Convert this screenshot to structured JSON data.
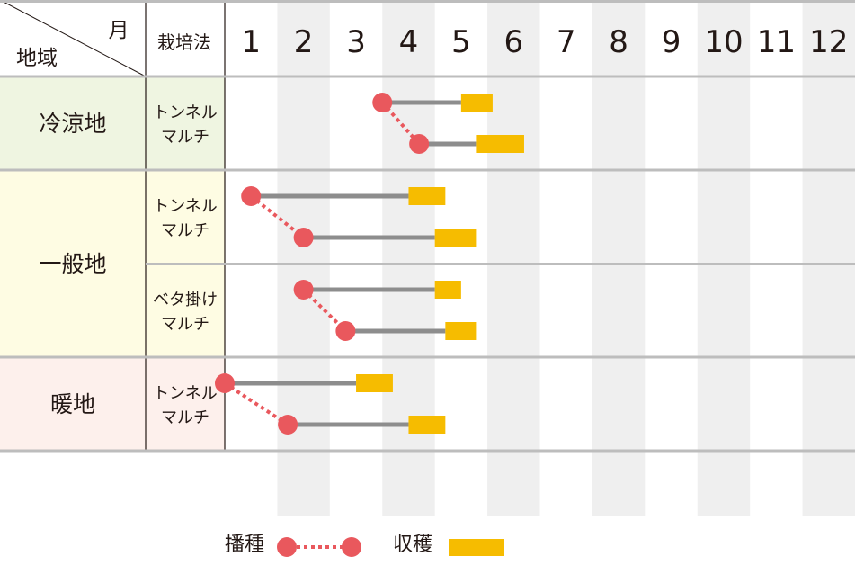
{
  "header": {
    "region_label": "地域",
    "month_label": "月",
    "method_label": "栽培法"
  },
  "chart_data": {
    "type": "gantt",
    "x_unit": "月",
    "months": [
      "1",
      "2",
      "3",
      "4",
      "5",
      "6",
      "7",
      "8",
      "9",
      "10",
      "11",
      "12"
    ],
    "regions": [
      {
        "name": "冷涼地",
        "color": "#eff5e1",
        "methods": [
          {
            "name_lines": [
              "トンネル",
              "マルチ"
            ],
            "sow_start": 4.0,
            "sow_end": 4.7,
            "early": {
              "start": 4.0,
              "harvest_start": 5.5,
              "end": 6.1
            },
            "late": {
              "start": 4.7,
              "harvest_start": 5.8,
              "end": 6.7
            }
          }
        ]
      },
      {
        "name": "一般地",
        "color": "#fefce3",
        "methods": [
          {
            "name_lines": [
              "トンネル",
              "マルチ"
            ],
            "sow_start": 1.5,
            "sow_end": 2.5,
            "early": {
              "start": 1.5,
              "harvest_start": 4.5,
              "end": 5.2
            },
            "late": {
              "start": 2.5,
              "harvest_start": 5.0,
              "end": 5.8
            }
          },
          {
            "name_lines": [
              "ベタ掛け",
              "マルチ"
            ],
            "sow_start": 2.5,
            "sow_end": 3.3,
            "early": {
              "start": 2.5,
              "harvest_start": 5.0,
              "end": 5.5
            },
            "late": {
              "start": 3.3,
              "harvest_start": 5.2,
              "end": 5.8
            }
          }
        ]
      },
      {
        "name": "暖地",
        "color": "#fdf0ec",
        "methods": [
          {
            "name_lines": [
              "トンネル",
              "マルチ"
            ],
            "sow_start": 1.0,
            "sow_end": 2.2,
            "early": {
              "start": 1.0,
              "harvest_start": 3.5,
              "end": 4.2
            },
            "late": {
              "start": 2.2,
              "harvest_start": 4.5,
              "end": 5.2
            }
          }
        ]
      }
    ],
    "legend": [
      {
        "label": "播種",
        "kind": "sowing",
        "color": "#e9585d"
      },
      {
        "label": "収穫",
        "kind": "harvest",
        "color": "#f6bc00"
      }
    ],
    "colors": {
      "growth_line": "#8d8d8d",
      "sowing": "#e9585d",
      "harvest": "#f6bc00",
      "grid": "#bdbdbd",
      "alt_column": "#efefef",
      "text": "#231815"
    }
  }
}
